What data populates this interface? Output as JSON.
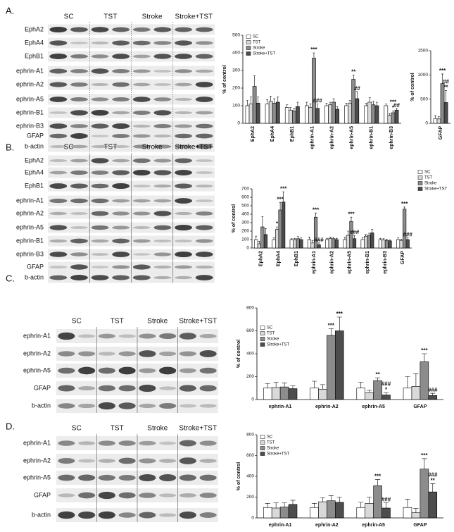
{
  "blots": [
    {
      "label": "A.",
      "groups": [
        "SC",
        "TST",
        "Stroke",
        "Stroke+TST"
      ],
      "rows": [
        "EphA2",
        "EphA4",
        "EphB1",
        "ephrin-A1",
        "ephrin-A2",
        "ephrin-A5",
        "ephrin-B1",
        "ephrin-B3",
        "GFAP",
        "b-actin"
      ]
    },
    {
      "label": "B.",
      "groups": [
        "SC",
        "TST",
        "Stroke",
        "Stroke+TST"
      ],
      "rows": [
        "EphA2",
        "EphA4",
        "EphB1",
        "ephrin-A1",
        "ephrin-A2",
        "ephrin-A5",
        "ephrin-B1",
        "ephrin-B3",
        "GFAP",
        "b-actin"
      ]
    },
    {
      "label": "C.",
      "groups": [
        "SC",
        "TST",
        "Stroke",
        "Stroke+TST"
      ],
      "rows": [
        "ephrin-A1",
        "ephrin-A2",
        "ephrin-A5",
        "GFAP",
        "b-actin"
      ]
    },
    {
      "label": "D.",
      "groups": [
        "SC",
        "TST",
        "Stroke",
        "Stroke+TST"
      ],
      "rows": [
        "ephrin-A1",
        "ephrin-A2",
        "ephrin-A5",
        "GFAP",
        "b-actin"
      ]
    }
  ],
  "chart_data": [
    {
      "type": "bar",
      "ylabel": "% of control",
      "legend": "upper left",
      "categories": [
        "EphA2",
        "EphA4",
        "EphB1",
        "ephrin-A1",
        "ephrin-A2",
        "ephrin-A5",
        "ephrin-B1",
        "ephrin-B3"
      ],
      "ylim": [
        0,
        500
      ],
      "yticks": [
        0,
        100,
        200,
        300,
        400,
        500
      ],
      "series": [
        {
          "name": "SC",
          "color": "#ffffff",
          "values": [
            100,
            110,
            90,
            100,
            100,
            100,
            100,
            100
          ],
          "errors": [
            30,
            25,
            15,
            20,
            15,
            15,
            15,
            10
          ],
          "annotations": [
            null,
            null,
            null,
            null,
            null,
            null,
            null,
            null
          ]
        },
        {
          "name": "TST",
          "color": "#d9d9d9",
          "values": [
            110,
            125,
            75,
            90,
            105,
            115,
            120,
            45
          ],
          "errors": [
            40,
            30,
            15,
            20,
            15,
            15,
            25,
            10
          ],
          "annotations": [
            null,
            null,
            null,
            null,
            null,
            null,
            null,
            null
          ]
        },
        {
          "name": "Stroke",
          "color": "#8c8c8c",
          "values": [
            210,
            115,
            70,
            370,
            120,
            250,
            105,
            60
          ],
          "errors": [
            60,
            25,
            15,
            30,
            20,
            25,
            20,
            10
          ],
          "annotations": [
            null,
            null,
            null,
            [
              "***"
            ],
            null,
            [
              "**"
            ],
            null,
            [
              "***",
              "*"
            ]
          ]
        },
        {
          "name": "Stroke+TST",
          "color": "#4d4d4d",
          "values": [
            115,
            120,
            95,
            85,
            80,
            140,
            100,
            75
          ],
          "errors": [
            35,
            30,
            25,
            25,
            15,
            40,
            20,
            10
          ],
          "annotations": [
            null,
            null,
            null,
            [
              "###"
            ],
            null,
            [
              "##"
            ],
            null,
            [
              "##"
            ]
          ]
        }
      ]
    },
    {
      "type": "bar",
      "ylabel": "% of control",
      "categories": [
        "GFAP"
      ],
      "ylim": [
        0,
        1500
      ],
      "yticks": [
        0,
        500,
        1000,
        1500
      ],
      "series": [
        {
          "name": "SC",
          "color": "#ffffff",
          "values": [
            100
          ],
          "errors": [
            60
          ],
          "annotations": [
            null
          ]
        },
        {
          "name": "TST",
          "color": "#d9d9d9",
          "values": [
            90
          ],
          "errors": [
            50
          ],
          "annotations": [
            null
          ]
        },
        {
          "name": "Stroke",
          "color": "#8c8c8c",
          "values": [
            820
          ],
          "errors": [
            200
          ],
          "annotations": [
            [
              "***"
            ]
          ]
        },
        {
          "name": "Stroke+TST",
          "color": "#4d4d4d",
          "values": [
            430
          ],
          "errors": [
            250
          ],
          "annotations": [
            [
              "##",
              "**"
            ]
          ]
        }
      ]
    },
    {
      "type": "bar",
      "ylabel": "% of control",
      "legend": "upper right",
      "categories": [
        "EphA2",
        "EphA4",
        "EphB1",
        "ephrin-A1",
        "ephrin-A2",
        "ephrin-A5",
        "ephrin-B1",
        "ephrin-B3",
        "GFAP"
      ],
      "ylim": [
        0,
        700
      ],
      "yticks": [
        0,
        100,
        200,
        300,
        400,
        500,
        600,
        700
      ],
      "series": [
        {
          "name": "SC",
          "color": "#ffffff",
          "values": [
            100,
            100,
            100,
            100,
            100,
            100,
            100,
            100,
            100
          ],
          "errors": [
            40,
            20,
            10,
            30,
            15,
            30,
            20,
            15,
            20
          ],
          "annotations": [
            null,
            null,
            null,
            null,
            null,
            null,
            null,
            null,
            null
          ]
        },
        {
          "name": "TST",
          "color": "#d9d9d9",
          "values": [
            50,
            220,
            100,
            60,
            115,
            150,
            140,
            95,
            90
          ],
          "errors": [
            30,
            30,
            15,
            30,
            15,
            50,
            20,
            15,
            15
          ],
          "annotations": [
            null,
            [
              "*"
            ],
            null,
            null,
            null,
            null,
            null,
            null,
            null
          ]
        },
        {
          "name": "Stroke",
          "color": "#8c8c8c",
          "values": [
            250,
            450,
            110,
            365,
            110,
            315,
            150,
            90,
            460
          ],
          "errors": [
            120,
            90,
            25,
            50,
            15,
            50,
            25,
            15,
            25
          ],
          "annotations": [
            null,
            [
              "***"
            ],
            null,
            [
              "***"
            ],
            null,
            [
              "***"
            ],
            null,
            null,
            [
              "***"
            ]
          ]
        },
        {
          "name": "Stroke+TST",
          "color": "#4d4d4d",
          "values": [
            160,
            545,
            100,
            40,
            100,
            110,
            180,
            85,
            100
          ],
          "errors": [
            70,
            120,
            20,
            20,
            15,
            40,
            40,
            10,
            20
          ],
          "annotations": [
            null,
            [
              "***"
            ],
            null,
            [
              "###"
            ],
            null,
            [
              "###"
            ],
            null,
            null,
            [
              "###"
            ]
          ]
        }
      ]
    },
    {
      "type": "bar",
      "ylabel": "% of control",
      "legend": "upper left",
      "categories": [
        "ephrin-A1",
        "ephrin-A2",
        "ephrin-A5",
        "GFAP"
      ],
      "ylim": [
        0,
        800
      ],
      "yticks": [
        0,
        200,
        400,
        600,
        800
      ],
      "series": [
        {
          "name": "SC",
          "color": "#ffffff",
          "values": [
            100,
            100,
            100,
            100
          ],
          "errors": [
            40,
            60,
            50,
            100
          ],
          "annotations": [
            null,
            null,
            null,
            null
          ]
        },
        {
          "name": "TST",
          "color": "#d9d9d9",
          "values": [
            105,
            90,
            60,
            115
          ],
          "errors": [
            45,
            40,
            20,
            110
          ],
          "annotations": [
            null,
            null,
            null,
            null
          ]
        },
        {
          "name": "Stroke",
          "color": "#8c8c8c",
          "values": [
            110,
            560,
            165,
            330
          ],
          "errors": [
            35,
            60,
            25,
            70
          ],
          "annotations": [
            null,
            [
              "***"
            ],
            [
              "**"
            ],
            [
              "***"
            ]
          ]
        },
        {
          "name": "Stroke+TST",
          "color": "#4d4d4d",
          "values": [
            95,
            600,
            40,
            35
          ],
          "errors": [
            25,
            120,
            20,
            20
          ],
          "annotations": [
            null,
            [
              "***"
            ],
            [
              "###",
              "*"
            ],
            [
              "###"
            ]
          ]
        }
      ]
    },
    {
      "type": "bar",
      "ylabel": "% of control",
      "legend": "upper left",
      "categories": [
        "ephrin-A1",
        "ephrin-A2",
        "ephrin-A5",
        "GFAP"
      ],
      "ylim": [
        0,
        800
      ],
      "yticks": [
        0,
        200,
        400,
        600,
        800
      ],
      "series": [
        {
          "name": "SC",
          "color": "#ffffff",
          "values": [
            100,
            100,
            100,
            100
          ],
          "errors": [
            40,
            40,
            50,
            80
          ],
          "annotations": [
            null,
            null,
            null,
            null
          ]
        },
        {
          "name": "TST",
          "color": "#d9d9d9",
          "values": [
            95,
            155,
            140,
            50
          ],
          "errors": [
            50,
            40,
            60,
            40
          ],
          "annotations": [
            null,
            null,
            null,
            null
          ]
        },
        {
          "name": "Stroke",
          "color": "#8c8c8c",
          "values": [
            105,
            165,
            310,
            470
          ],
          "errors": [
            40,
            50,
            60,
            100
          ],
          "annotations": [
            null,
            null,
            [
              "***"
            ],
            [
              "***"
            ]
          ]
        },
        {
          "name": "Stroke+TST",
          "color": "#4d4d4d",
          "values": [
            130,
            150,
            95,
            250
          ],
          "errors": [
            40,
            50,
            50,
            80
          ],
          "annotations": [
            null,
            null,
            [
              "###"
            ],
            [
              "###",
              "**"
            ]
          ]
        }
      ]
    }
  ]
}
